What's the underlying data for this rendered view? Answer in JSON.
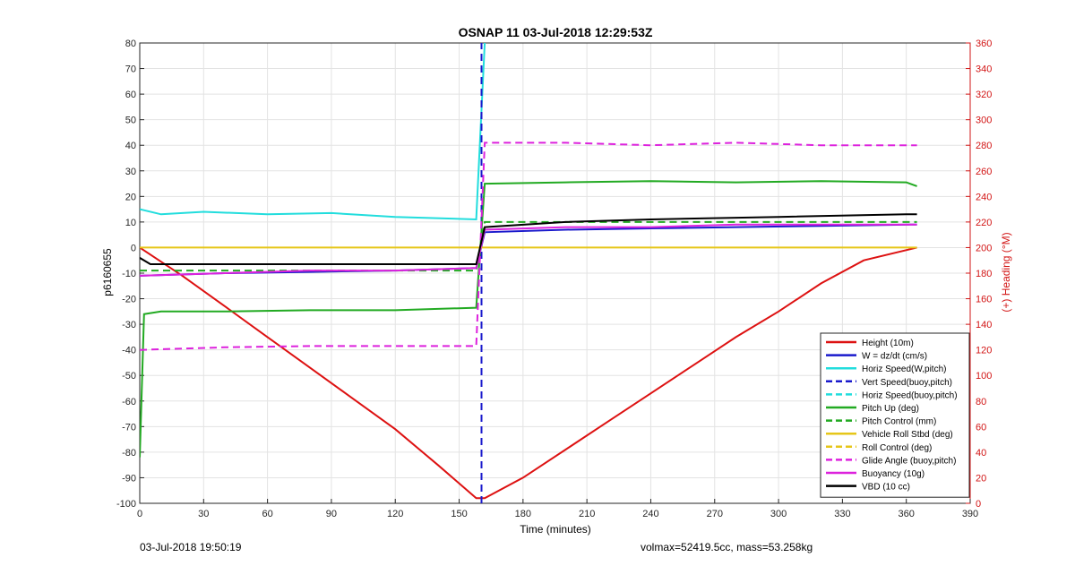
{
  "chart_data": {
    "type": "line",
    "title": "OSNAP 11 03-Jul-2018 12:29:53Z",
    "xlabel": "Time (minutes)",
    "ylabel_left": "p6160655",
    "ylabel_right": "(+) Heading (°M)",
    "xlim": [
      0,
      390
    ],
    "ylim_left": [
      -100,
      80
    ],
    "ylim_right": [
      0,
      360
    ],
    "x_ticks": [
      0,
      30,
      60,
      90,
      120,
      150,
      180,
      210,
      240,
      270,
      300,
      330,
      360,
      390
    ],
    "y_ticks_left": [
      -100,
      -90,
      -80,
      -70,
      -60,
      -50,
      -40,
      -30,
      -20,
      -10,
      0,
      10,
      20,
      30,
      40,
      50,
      60,
      70,
      80
    ],
    "y_ticks_right": [
      0,
      20,
      40,
      60,
      80,
      100,
      120,
      140,
      160,
      180,
      200,
      220,
      240,
      260,
      280,
      300,
      320,
      340,
      360
    ],
    "grid": true,
    "legend_position": "bottom-right",
    "series": [
      {
        "name": "Height (10m)",
        "color": "#dd1111",
        "style": "solid",
        "x": [
          0,
          20,
          40,
          60,
          80,
          100,
          120,
          140,
          158,
          162,
          180,
          200,
          220,
          240,
          260,
          280,
          300,
          320,
          340,
          365
        ],
        "y": [
          0,
          -11,
          -23,
          -35,
          -47,
          -59,
          -71,
          -85,
          -98,
          -98,
          -90,
          -79,
          -68,
          -57,
          -46,
          -35,
          -25,
          -14,
          -5,
          0
        ]
      },
      {
        "name": "W = dz/dt (cm/s)",
        "color": "#1a1acc",
        "style": "solid",
        "x": [
          0,
          40,
          80,
          120,
          158,
          162,
          200,
          240,
          280,
          320,
          365
        ],
        "y": [
          -11,
          -10,
          -9.5,
          -9,
          -8,
          6,
          7,
          7.5,
          8,
          8.5,
          9
        ]
      },
      {
        "name": "Horiz Speed(W,pitch)",
        "color": "#22dddd",
        "style": "solid",
        "x": [
          0,
          10,
          30,
          60,
          90,
          120,
          158,
          162
        ],
        "y": [
          15,
          13,
          14,
          13,
          13.5,
          12,
          11,
          80
        ]
      },
      {
        "name": "Vert Speed(buoy,pitch)",
        "color": "#1a1acc",
        "style": "dashed",
        "x": [
          160.5,
          160.5
        ],
        "y": [
          -100,
          80
        ]
      },
      {
        "name": "Horiz Speed(buoy,pitch)",
        "color": "#22dddd",
        "style": "dashed",
        "x": [],
        "y": []
      },
      {
        "name": "Pitch Up (deg)",
        "color": "#22aa22",
        "style": "solid",
        "x": [
          0,
          2,
          10,
          40,
          80,
          120,
          158,
          162,
          200,
          240,
          280,
          320,
          360,
          365
        ],
        "y": [
          -82,
          -26,
          -25,
          -25,
          -24.5,
          -24.5,
          -23.5,
          25,
          25.5,
          26,
          25.5,
          26,
          25.5,
          24
        ]
      },
      {
        "name": "Pitch Control (mm)",
        "color": "#22aa22",
        "style": "dashed",
        "x": [
          0,
          158,
          162,
          365
        ],
        "y": [
          -9,
          -9,
          10,
          10
        ]
      },
      {
        "name": "Vehicle Roll Stbd (deg)",
        "color": "#e6c619",
        "style": "solid",
        "x": [
          0,
          158,
          162,
          365
        ],
        "y": [
          0,
          0,
          0,
          0
        ]
      },
      {
        "name": "Roll Control (deg)",
        "color": "#e6c619",
        "style": "dashed",
        "x": [],
        "y": []
      },
      {
        "name": "Glide Angle (buoy,pitch)",
        "color": "#dd22dd",
        "style": "dashed",
        "x": [
          0,
          40,
          80,
          120,
          158,
          162,
          200,
          240,
          280,
          320,
          365
        ],
        "y": [
          -40,
          -39,
          -38.5,
          -38.5,
          -38.5,
          41,
          41,
          40,
          41,
          40,
          40
        ]
      },
      {
        "name": "Buoyancy (10g)",
        "color": "#dd22dd",
        "style": "solid",
        "x": [
          0,
          40,
          80,
          120,
          158,
          162,
          200,
          240,
          280,
          320,
          365
        ],
        "y": [
          -11,
          -10,
          -9,
          -9,
          -8,
          7,
          8,
          8,
          9,
          9,
          9
        ]
      },
      {
        "name": "VBD (10 cc)",
        "color": "#000000",
        "style": "solid",
        "x": [
          0,
          5,
          158,
          162,
          200,
          240,
          300,
          360,
          365
        ],
        "y": [
          -4,
          -6.5,
          -6.5,
          8,
          10,
          11,
          12,
          13,
          13
        ]
      }
    ]
  },
  "footer": {
    "timestamp": "03-Jul-2018 19:50:19",
    "stats": "volmax=52419.5cc, mass=53.258kg"
  }
}
